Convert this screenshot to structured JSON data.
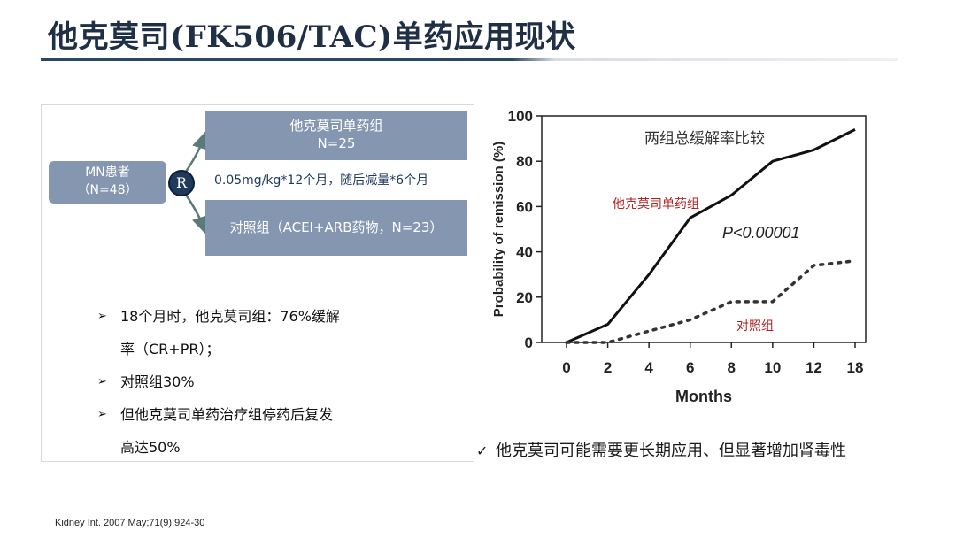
{
  "slide": {
    "title": "他克莫司(FK506/TAC)单药应用现状",
    "footnote": "Kidney Int. 2007 May;71(9):924-30"
  },
  "diagram": {
    "mn_line1": "MN患者",
    "mn_line2": "（N=48）",
    "randomize": "R",
    "tac_line1": "他克莫司单药组",
    "tac_line2": "N=25",
    "dose": "0.05mg/kg*12个月，随后减量*6个月",
    "control": "对照组（ACEI+ARB药物，N=23）",
    "colors": {
      "box": "#8496b0",
      "circle": "#1f3a5c",
      "arrow": "#5a7a7a",
      "title": "#1f2f46"
    }
  },
  "bullets": [
    {
      "marker": "➢",
      "text": "18个月时，他克莫司组：76%缓解"
    },
    {
      "marker": "",
      "text": "率（CR+PR）；"
    },
    {
      "marker": "➢",
      "text": "对照组30%"
    },
    {
      "marker": "➢",
      "text": "但他克莫司单药治疗组停药后复发"
    },
    {
      "marker": "",
      "text": "高达50%"
    }
  ],
  "note": {
    "marker": "✓",
    "text": "他克莫司可能需要更长期应用、但显著增加肾毒性"
  },
  "chart_data": {
    "type": "line",
    "title": "两组总缓解率比较",
    "xlabel": "Months",
    "ylabel": "Probability of remission (%)",
    "categories": [
      "0",
      "2",
      "4",
      "6",
      "8",
      "10",
      "12",
      "18"
    ],
    "ylim": [
      0,
      100
    ],
    "yticks": [
      0,
      20,
      40,
      60,
      80,
      100
    ],
    "grid": false,
    "annotation": "P<0.00001",
    "series": [
      {
        "name": "他克莫司单药组",
        "style": "solid",
        "color": "#111111",
        "label_color": "#b22222",
        "values": [
          0,
          8,
          30,
          55,
          65,
          80,
          85,
          94
        ]
      },
      {
        "name": "对照组",
        "style": "dotted",
        "color": "#333333",
        "label_color": "#b22222",
        "values": [
          0,
          0,
          5,
          10,
          18,
          18,
          34,
          36
        ]
      }
    ]
  }
}
